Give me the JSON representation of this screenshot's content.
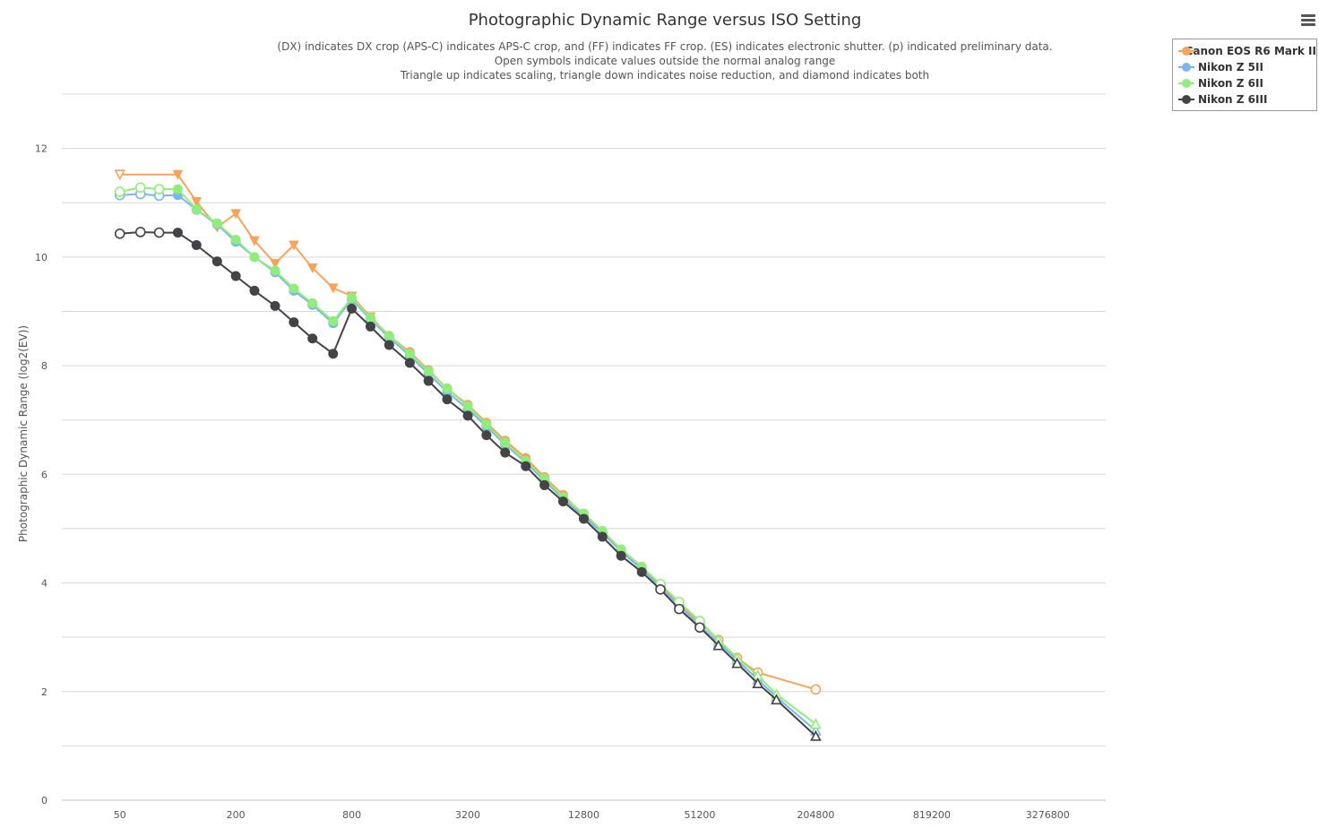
{
  "menu": {
    "icon": "hamburger-menu-icon"
  },
  "chart_data": {
    "type": "line",
    "title": "Photographic Dynamic Range versus ISO Setting",
    "subtitle_lines": [
      "(DX) indicates DX crop (APS-C) indicates APS-C crop, and (FF) indicates FF crop. (ES) indicates electronic shutter. (p) indicated preliminary data.",
      "Open symbols indicate values outside the normal analog range",
      "Triangle up indicates scaling, triangle down indicates noise reduction, and diamond indicates both"
    ],
    "xlabel": "",
    "ylabel": "Photographic Dynamic Range (log2(EV))",
    "x_scale": "log2",
    "x_ticks": [
      50,
      200,
      800,
      3200,
      12800,
      51200,
      204800,
      819200,
      3276800
    ],
    "xlim": [
      25,
      6553600
    ],
    "y_ticks": [
      0,
      2,
      4,
      6,
      8,
      10,
      12
    ],
    "ylim": [
      0,
      13
    ],
    "grid": true,
    "legend_position": "top-right",
    "series": [
      {
        "name": "Canon EOS R6 Mark II",
        "color": "#f7a35c",
        "points": [
          {
            "x": 50,
            "y": 11.52,
            "marker": "triangle-down",
            "open": true
          },
          {
            "x": 100,
            "y": 11.52,
            "marker": "triangle-down",
            "open": false
          },
          {
            "x": 125,
            "y": 11.02,
            "marker": "triangle-down",
            "open": false
          },
          {
            "x": 160,
            "y": 10.55,
            "marker": "triangle-down",
            "open": false
          },
          {
            "x": 200,
            "y": 10.8,
            "marker": "triangle-down",
            "open": false
          },
          {
            "x": 250,
            "y": 10.3,
            "marker": "triangle-down",
            "open": false
          },
          {
            "x": 320,
            "y": 9.88,
            "marker": "triangle-down",
            "open": false
          },
          {
            "x": 400,
            "y": 10.22,
            "marker": "triangle-down",
            "open": false
          },
          {
            "x": 500,
            "y": 9.8,
            "marker": "triangle-down",
            "open": false
          },
          {
            "x": 640,
            "y": 9.43,
            "marker": "triangle-down",
            "open": false
          },
          {
            "x": 800,
            "y": 9.28,
            "marker": "triangle-down",
            "open": false
          },
          {
            "x": 1000,
            "y": 8.9,
            "marker": "triangle-down",
            "open": false
          },
          {
            "x": 1250,
            "y": 8.55,
            "marker": "circle",
            "open": false
          },
          {
            "x": 1600,
            "y": 8.25,
            "marker": "circle",
            "open": false
          },
          {
            "x": 2000,
            "y": 7.92,
            "marker": "circle",
            "open": false
          },
          {
            "x": 2500,
            "y": 7.58,
            "marker": "circle",
            "open": false
          },
          {
            "x": 3200,
            "y": 7.28,
            "marker": "circle",
            "open": false
          },
          {
            "x": 4000,
            "y": 6.95,
            "marker": "circle",
            "open": false
          },
          {
            "x": 5000,
            "y": 6.62,
            "marker": "circle",
            "open": false
          },
          {
            "x": 6400,
            "y": 6.3,
            "marker": "circle",
            "open": false
          },
          {
            "x": 8000,
            "y": 5.95,
            "marker": "circle",
            "open": false
          },
          {
            "x": 10000,
            "y": 5.62,
            "marker": "circle",
            "open": false
          },
          {
            "x": 12800,
            "y": 5.25,
            "marker": "circle",
            "open": false
          },
          {
            "x": 16000,
            "y": 4.92,
            "marker": "circle",
            "open": false
          },
          {
            "x": 20000,
            "y": 4.6,
            "marker": "circle",
            "open": false
          },
          {
            "x": 25600,
            "y": 4.28,
            "marker": "circle",
            "open": false
          },
          {
            "x": 32000,
            "y": 3.95,
            "marker": "circle",
            "open": true
          },
          {
            "x": 40000,
            "y": 3.6,
            "marker": "circle",
            "open": true
          },
          {
            "x": 51200,
            "y": 3.28,
            "marker": "circle",
            "open": true
          },
          {
            "x": 64000,
            "y": 2.95,
            "marker": "circle",
            "open": true
          },
          {
            "x": 80000,
            "y": 2.62,
            "marker": "circle",
            "open": true
          },
          {
            "x": 102400,
            "y": 2.35,
            "marker": "circle",
            "open": true
          },
          {
            "x": 204800,
            "y": 2.04,
            "marker": "circle",
            "open": true
          }
        ]
      },
      {
        "name": "Nikon Z 5II",
        "color": "#7cb5ec",
        "points": [
          {
            "x": 50,
            "y": 11.14,
            "marker": "circle",
            "open": true
          },
          {
            "x": 64,
            "y": 11.16,
            "marker": "circle",
            "open": true
          },
          {
            "x": 80,
            "y": 11.13,
            "marker": "circle",
            "open": true
          },
          {
            "x": 100,
            "y": 11.14,
            "marker": "circle",
            "open": false
          },
          {
            "x": 125,
            "y": 10.87,
            "marker": "circle",
            "open": false
          },
          {
            "x": 160,
            "y": 10.6,
            "marker": "circle",
            "open": false
          },
          {
            "x": 200,
            "y": 10.28,
            "marker": "circle",
            "open": false
          },
          {
            "x": 250,
            "y": 10.0,
            "marker": "circle",
            "open": false
          },
          {
            "x": 320,
            "y": 9.72,
            "marker": "circle",
            "open": false
          },
          {
            "x": 400,
            "y": 9.38,
            "marker": "circle",
            "open": false
          },
          {
            "x": 500,
            "y": 9.12,
            "marker": "circle",
            "open": false
          },
          {
            "x": 640,
            "y": 8.78,
            "marker": "circle",
            "open": false
          },
          {
            "x": 800,
            "y": 9.22,
            "marker": "circle",
            "open": false
          },
          {
            "x": 1000,
            "y": 8.85,
            "marker": "circle",
            "open": false
          },
          {
            "x": 1250,
            "y": 8.52,
            "marker": "circle",
            "open": false
          },
          {
            "x": 1600,
            "y": 8.18,
            "marker": "circle",
            "open": false
          },
          {
            "x": 2000,
            "y": 7.85,
            "marker": "circle",
            "open": false
          },
          {
            "x": 2500,
            "y": 7.52,
            "marker": "circle",
            "open": false
          },
          {
            "x": 3200,
            "y": 7.2,
            "marker": "circle",
            "open": false
          },
          {
            "x": 4000,
            "y": 6.88,
            "marker": "circle",
            "open": false
          },
          {
            "x": 5000,
            "y": 6.55,
            "marker": "circle",
            "open": false
          },
          {
            "x": 6400,
            "y": 6.22,
            "marker": "circle",
            "open": false
          },
          {
            "x": 8000,
            "y": 5.88,
            "marker": "circle",
            "open": false
          },
          {
            "x": 10000,
            "y": 5.55,
            "marker": "circle",
            "open": false
          },
          {
            "x": 12800,
            "y": 5.22,
            "marker": "circle",
            "open": false
          },
          {
            "x": 16000,
            "y": 4.92,
            "marker": "circle",
            "open": false
          },
          {
            "x": 20000,
            "y": 4.58,
            "marker": "circle",
            "open": false
          },
          {
            "x": 25600,
            "y": 4.25,
            "marker": "circle",
            "open": false
          },
          {
            "x": 32000,
            "y": 3.92,
            "marker": "circle",
            "open": true
          },
          {
            "x": 40000,
            "y": 3.58,
            "marker": "circle",
            "open": true
          },
          {
            "x": 51200,
            "y": 3.22,
            "marker": "circle",
            "open": true
          },
          {
            "x": 64000,
            "y": 2.9,
            "marker": "triangle-up",
            "open": true
          },
          {
            "x": 80000,
            "y": 2.58,
            "marker": "triangle-up",
            "open": true
          },
          {
            "x": 102400,
            "y": 2.22,
            "marker": "triangle-up",
            "open": true
          },
          {
            "x": 128000,
            "y": 1.9,
            "marker": "triangle-up",
            "open": true
          },
          {
            "x": 204800,
            "y": 1.28,
            "marker": "triangle-up",
            "open": true
          }
        ]
      },
      {
        "name": "Nikon Z 6II",
        "color": "#90ed7d",
        "points": [
          {
            "x": 50,
            "y": 11.2,
            "marker": "circle",
            "open": true
          },
          {
            "x": 64,
            "y": 11.28,
            "marker": "circle",
            "open": true
          },
          {
            "x": 80,
            "y": 11.25,
            "marker": "circle",
            "open": true
          },
          {
            "x": 100,
            "y": 11.25,
            "marker": "circle",
            "open": false
          },
          {
            "x": 125,
            "y": 10.88,
            "marker": "circle",
            "open": false
          },
          {
            "x": 160,
            "y": 10.62,
            "marker": "circle",
            "open": false
          },
          {
            "x": 200,
            "y": 10.32,
            "marker": "circle",
            "open": false
          },
          {
            "x": 250,
            "y": 10.0,
            "marker": "circle",
            "open": false
          },
          {
            "x": 320,
            "y": 9.75,
            "marker": "circle",
            "open": false
          },
          {
            "x": 400,
            "y": 9.42,
            "marker": "circle",
            "open": false
          },
          {
            "x": 500,
            "y": 9.15,
            "marker": "circle",
            "open": false
          },
          {
            "x": 640,
            "y": 8.82,
            "marker": "circle",
            "open": false
          },
          {
            "x": 800,
            "y": 9.25,
            "marker": "circle",
            "open": false
          },
          {
            "x": 1000,
            "y": 8.88,
            "marker": "circle",
            "open": false
          },
          {
            "x": 1250,
            "y": 8.55,
            "marker": "circle",
            "open": false
          },
          {
            "x": 1600,
            "y": 8.22,
            "marker": "circle",
            "open": false
          },
          {
            "x": 2000,
            "y": 7.9,
            "marker": "circle",
            "open": false
          },
          {
            "x": 2500,
            "y": 7.58,
            "marker": "circle",
            "open": false
          },
          {
            "x": 3200,
            "y": 7.25,
            "marker": "circle",
            "open": false
          },
          {
            "x": 4000,
            "y": 6.92,
            "marker": "circle",
            "open": false
          },
          {
            "x": 5000,
            "y": 6.58,
            "marker": "circle",
            "open": false
          },
          {
            "x": 6400,
            "y": 6.25,
            "marker": "circle",
            "open": false
          },
          {
            "x": 8000,
            "y": 5.92,
            "marker": "circle",
            "open": false
          },
          {
            "x": 10000,
            "y": 5.58,
            "marker": "circle",
            "open": false
          },
          {
            "x": 12800,
            "y": 5.28,
            "marker": "circle",
            "open": false
          },
          {
            "x": 16000,
            "y": 4.96,
            "marker": "circle",
            "open": false
          },
          {
            "x": 20000,
            "y": 4.62,
            "marker": "circle",
            "open": false
          },
          {
            "x": 25600,
            "y": 4.3,
            "marker": "circle",
            "open": false
          },
          {
            "x": 32000,
            "y": 3.98,
            "marker": "circle",
            "open": true
          },
          {
            "x": 40000,
            "y": 3.65,
            "marker": "circle",
            "open": true
          },
          {
            "x": 51200,
            "y": 3.3,
            "marker": "circle",
            "open": true
          },
          {
            "x": 64000,
            "y": 2.95,
            "marker": "triangle-up",
            "open": true
          },
          {
            "x": 80000,
            "y": 2.62,
            "marker": "triangle-up",
            "open": true
          },
          {
            "x": 102400,
            "y": 2.3,
            "marker": "triangle-up",
            "open": true
          },
          {
            "x": 128000,
            "y": 1.95,
            "marker": "triangle-up",
            "open": true
          },
          {
            "x": 204800,
            "y": 1.4,
            "marker": "triangle-up",
            "open": true
          }
        ]
      },
      {
        "name": "Nikon Z 6III",
        "color": "#434348",
        "points": [
          {
            "x": 50,
            "y": 10.43,
            "marker": "circle",
            "open": true
          },
          {
            "x": 64,
            "y": 10.46,
            "marker": "circle",
            "open": true
          },
          {
            "x": 80,
            "y": 10.45,
            "marker": "circle",
            "open": true
          },
          {
            "x": 100,
            "y": 10.45,
            "marker": "circle",
            "open": false
          },
          {
            "x": 125,
            "y": 10.22,
            "marker": "circle",
            "open": false
          },
          {
            "x": 160,
            "y": 9.92,
            "marker": "circle",
            "open": false
          },
          {
            "x": 200,
            "y": 9.65,
            "marker": "circle",
            "open": false
          },
          {
            "x": 250,
            "y": 9.38,
            "marker": "circle",
            "open": false
          },
          {
            "x": 320,
            "y": 9.1,
            "marker": "circle",
            "open": false
          },
          {
            "x": 400,
            "y": 8.8,
            "marker": "circle",
            "open": false
          },
          {
            "x": 500,
            "y": 8.5,
            "marker": "circle",
            "open": false
          },
          {
            "x": 640,
            "y": 8.22,
            "marker": "circle",
            "open": false
          },
          {
            "x": 800,
            "y": 9.05,
            "marker": "circle",
            "open": false
          },
          {
            "x": 1000,
            "y": 8.72,
            "marker": "circle",
            "open": false
          },
          {
            "x": 1250,
            "y": 8.38,
            "marker": "circle",
            "open": false
          },
          {
            "x": 1600,
            "y": 8.05,
            "marker": "circle",
            "open": false
          },
          {
            "x": 2000,
            "y": 7.72,
            "marker": "circle",
            "open": false
          },
          {
            "x": 2500,
            "y": 7.38,
            "marker": "circle",
            "open": false
          },
          {
            "x": 3200,
            "y": 7.08,
            "marker": "circle",
            "open": false
          },
          {
            "x": 4000,
            "y": 6.72,
            "marker": "circle",
            "open": false
          },
          {
            "x": 5000,
            "y": 6.4,
            "marker": "circle",
            "open": false
          },
          {
            "x": 6400,
            "y": 6.15,
            "marker": "circle",
            "open": false
          },
          {
            "x": 8000,
            "y": 5.8,
            "marker": "circle",
            "open": false
          },
          {
            "x": 10000,
            "y": 5.5,
            "marker": "circle",
            "open": false
          },
          {
            "x": 12800,
            "y": 5.18,
            "marker": "circle",
            "open": false
          },
          {
            "x": 16000,
            "y": 4.85,
            "marker": "circle",
            "open": false
          },
          {
            "x": 20000,
            "y": 4.5,
            "marker": "circle",
            "open": false
          },
          {
            "x": 25600,
            "y": 4.2,
            "marker": "circle",
            "open": false
          },
          {
            "x": 32000,
            "y": 3.88,
            "marker": "circle",
            "open": true
          },
          {
            "x": 40000,
            "y": 3.52,
            "marker": "circle",
            "open": true
          },
          {
            "x": 51200,
            "y": 3.18,
            "marker": "circle",
            "open": true
          },
          {
            "x": 64000,
            "y": 2.85,
            "marker": "triangle-up",
            "open": true
          },
          {
            "x": 80000,
            "y": 2.52,
            "marker": "triangle-up",
            "open": true
          },
          {
            "x": 102400,
            "y": 2.15,
            "marker": "triangle-up",
            "open": true
          },
          {
            "x": 128000,
            "y": 1.85,
            "marker": "triangle-up",
            "open": true
          },
          {
            "x": 204800,
            "y": 1.18,
            "marker": "triangle-up",
            "open": true
          }
        ]
      }
    ]
  }
}
